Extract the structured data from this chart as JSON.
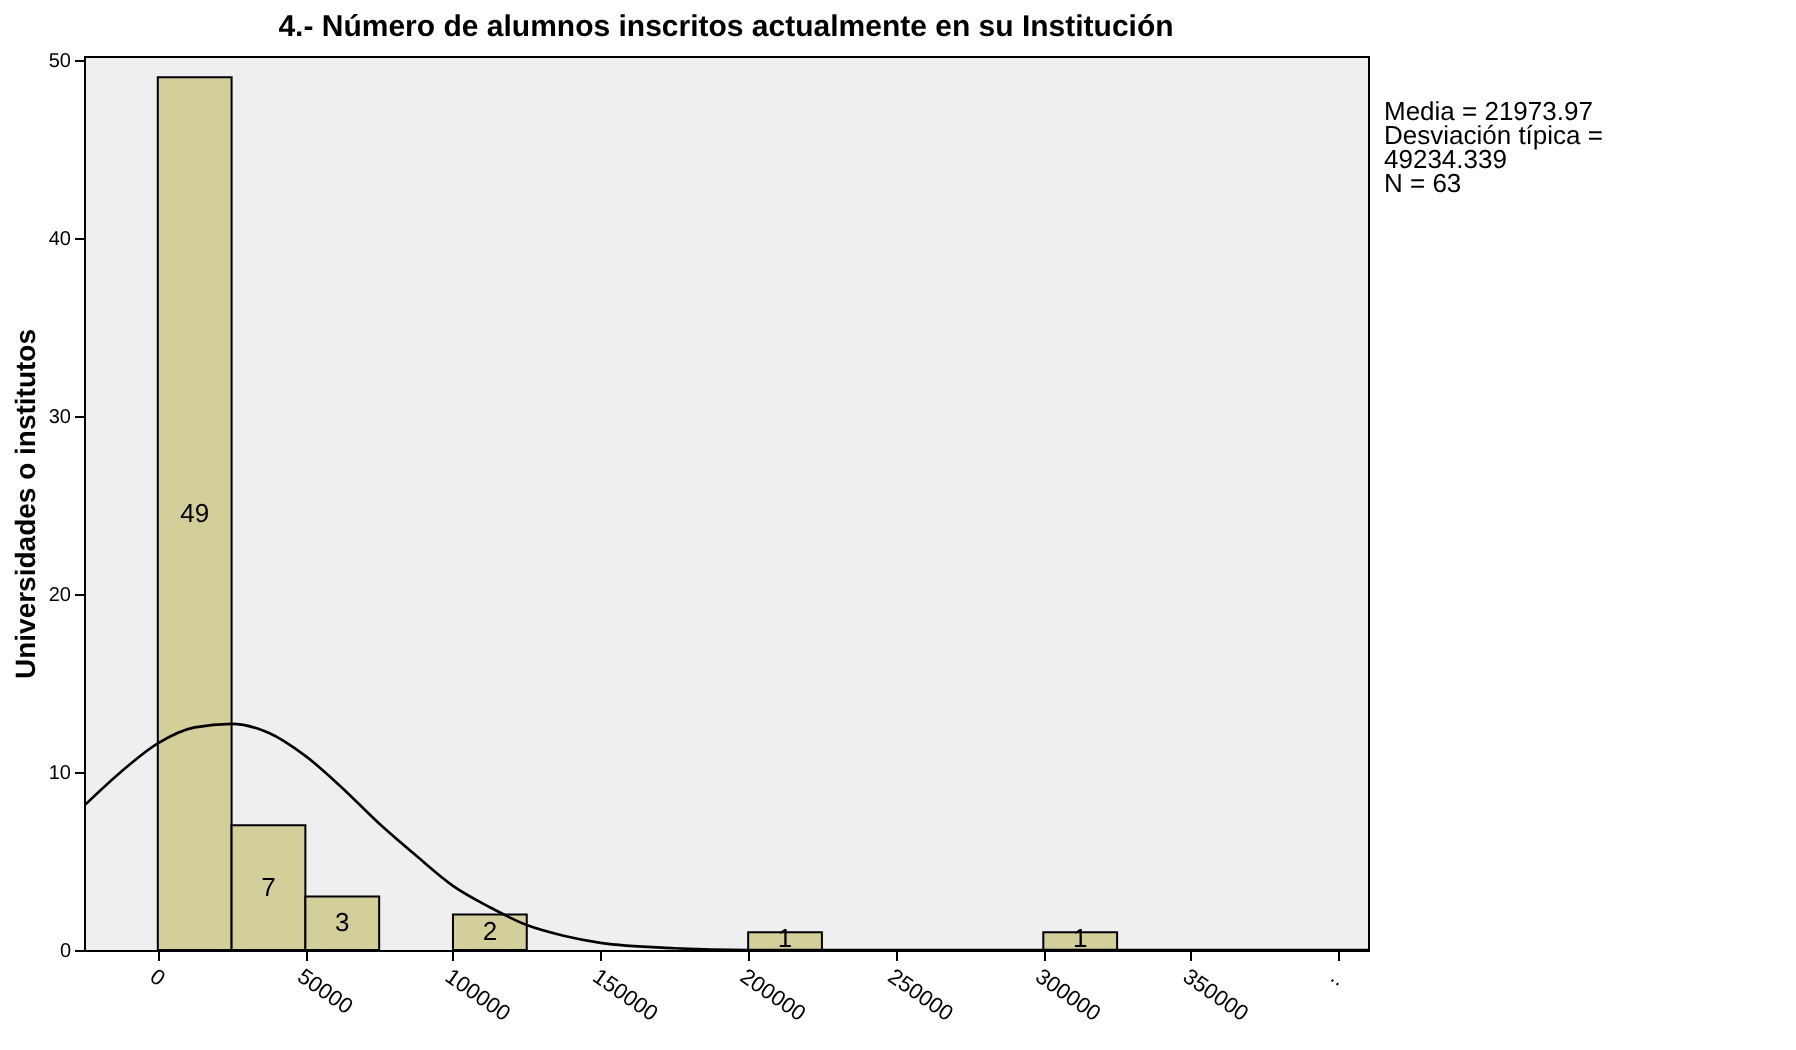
{
  "chart_data": {
    "type": "histogram",
    "title": "4.- Número de alumnos inscritos actualmente en su Institución",
    "ylabel": "Universidades o institutos",
    "bins": [
      0,
      25000,
      50000,
      75000,
      100000,
      125000,
      150000,
      175000,
      200000,
      225000,
      250000,
      275000,
      300000,
      325000
    ],
    "values": [
      49,
      7,
      3,
      0,
      2,
      0,
      0,
      0,
      1,
      0,
      0,
      0,
      1
    ],
    "value_labels": [
      "49",
      "7",
      "3",
      null,
      "2",
      null,
      null,
      null,
      "1",
      null,
      null,
      null,
      "1"
    ],
    "color": "#d3cf9b",
    "series": [
      {
        "type": "line",
        "color": "#000000",
        "x": [
          -25000,
          -12500,
          0,
          12500,
          25000,
          37500,
          50000,
          62500,
          75000,
          87500,
          100000,
          112500,
          125000,
          137500,
          150000,
          175000,
          200000,
          250000,
          300000,
          350000,
          410000
        ],
        "values": [
          8.1,
          10.0,
          11.6,
          12.5,
          12.7,
          12.2,
          10.9,
          9.1,
          7.1,
          5.3,
          3.6,
          2.4,
          1.4,
          0.8,
          0.4,
          0.1,
          0,
          0,
          0,
          0,
          0
        ]
      }
    ],
    "xlim": [
      -25000,
      410000
    ],
    "xticks": [
      0,
      50000,
      100000,
      150000,
      200000,
      250000,
      300000,
      350000,
      {
        "value": 400000,
        "label": ".."
      }
    ],
    "ylim": [
      0,
      50.2
    ],
    "yticks": [
      0,
      10,
      20,
      30,
      40,
      50
    ],
    "grid": false,
    "annotations": [
      "Media = 21973.97",
      "Desviación típica =",
      "49234.339",
      "N = 63"
    ]
  }
}
